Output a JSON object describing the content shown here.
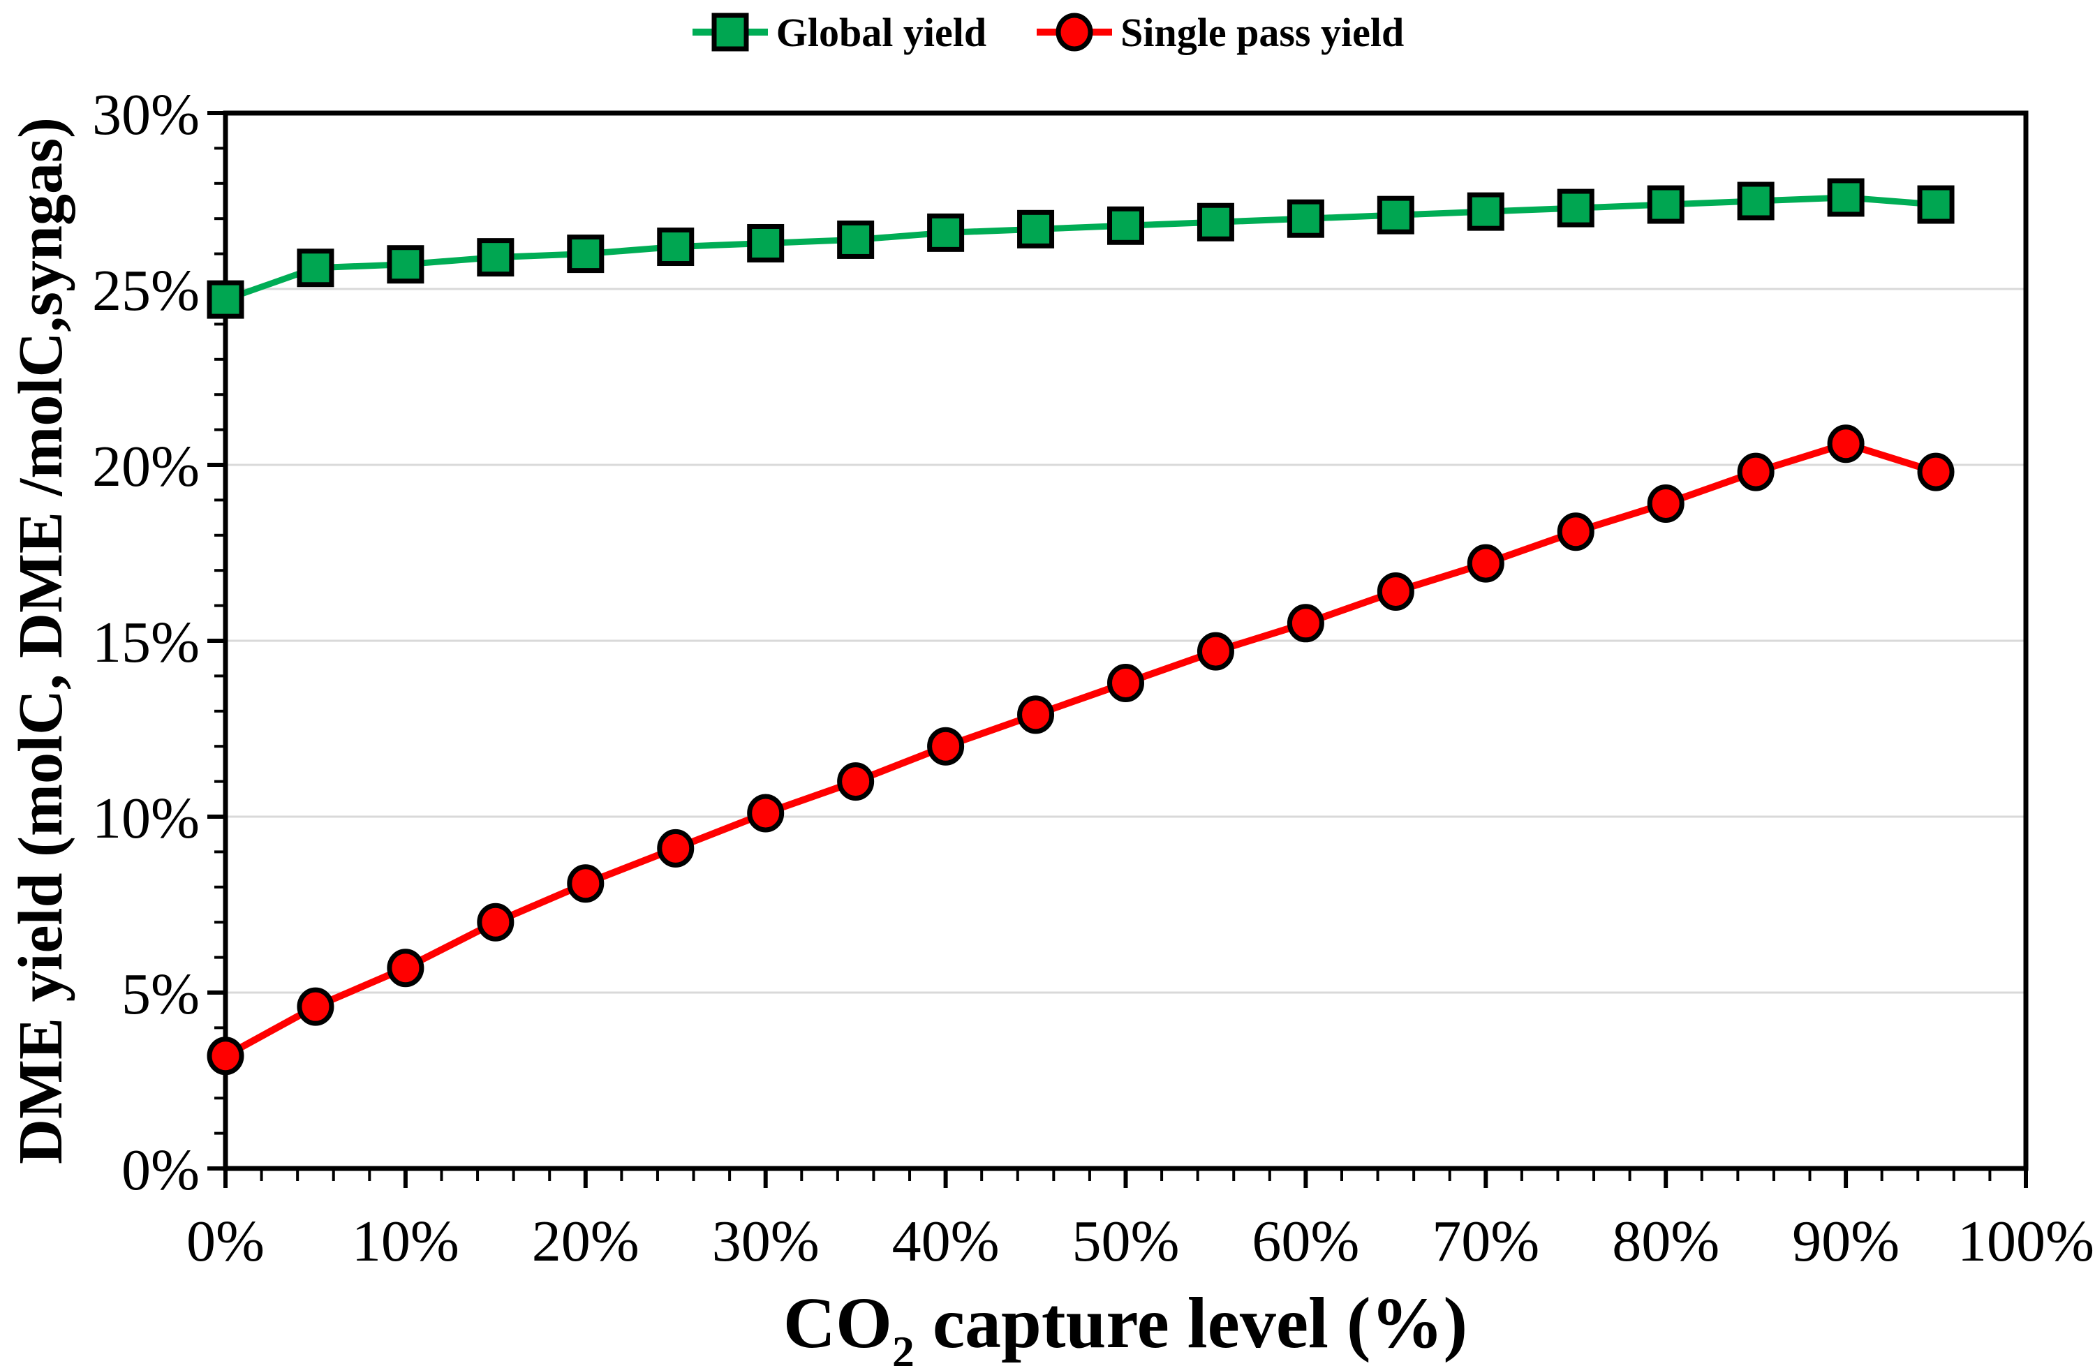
{
  "figure": {
    "background": "#ffffff",
    "frame_color": "#000000",
    "grid_color": "#d9d9d9",
    "legend": {
      "items": [
        {
          "label": "Global yield",
          "marker": "square",
          "marker_fill": "#00a651",
          "line_color": "#00ad55"
        },
        {
          "label": "Single pass yield",
          "marker": "circle",
          "marker_fill": "#ff0000",
          "line_color": "#ff0000"
        }
      ]
    },
    "x_axis": {
      "title_prefix": "CO",
      "title_sub": "2",
      "title_suffix": " capture level (%)",
      "min": 0,
      "max": 100,
      "major_tick_step": 10,
      "minor_tick_step": 2,
      "tick_labels": [
        "0%",
        "10%",
        "20%",
        "30%",
        "40%",
        "50%",
        "60%",
        "70%",
        "80%",
        "90%",
        "100%"
      ]
    },
    "y_axis": {
      "title": "DME yield (molC, DME /molC,syngas)",
      "min": 0,
      "max": 30,
      "major_tick_step": 5,
      "minor_tick_step": 1,
      "tick_labels": [
        "0%",
        "5%",
        "10%",
        "15%",
        "20%",
        "25%",
        "30%"
      ]
    }
  },
  "chart_data": {
    "type": "line",
    "x": [
      0,
      5,
      10,
      15,
      20,
      25,
      30,
      35,
      40,
      45,
      50,
      55,
      60,
      65,
      70,
      75,
      80,
      85,
      90,
      95
    ],
    "series": [
      {
        "name": "Global yield",
        "marker": "square",
        "color": "#00a651",
        "line_color": "#00ad55",
        "values": [
          24.7,
          25.6,
          25.7,
          25.9,
          26.0,
          26.2,
          26.3,
          26.4,
          26.6,
          26.7,
          26.8,
          26.9,
          27.0,
          27.1,
          27.2,
          27.3,
          27.4,
          27.5,
          27.6,
          27.4
        ]
      },
      {
        "name": "Single pass yield",
        "marker": "circle",
        "color": "#ff0000",
        "line_color": "#ff0000",
        "values": [
          3.2,
          4.6,
          5.7,
          7.0,
          8.1,
          9.1,
          10.1,
          11.0,
          12.0,
          12.9,
          13.8,
          14.7,
          15.5,
          16.4,
          17.2,
          18.1,
          18.9,
          19.8,
          20.6,
          19.8
        ]
      }
    ],
    "xlabel": "CO2 capture level (%)",
    "ylabel": "DME yield (molC, DME /molC,syngas)",
    "xlim": [
      0,
      100
    ],
    "ylim": [
      0,
      30
    ],
    "grid": "horizontal-major",
    "legend_position": "top-center"
  }
}
